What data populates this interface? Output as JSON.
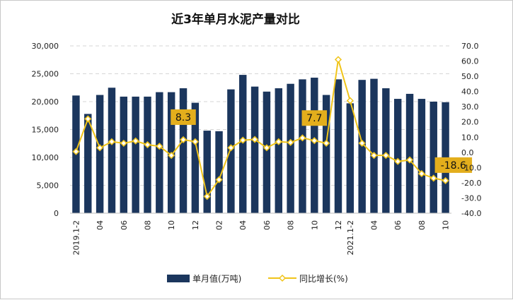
{
  "chart_data": {
    "type": "bar",
    "title": "近3年单月水泥产量对比",
    "colors": {
      "bar": "#1B365D",
      "line": "#F0C419",
      "marker_fill": "#ffffff",
      "callout_bg": "#E3AE1C",
      "grid": "#d6d6d6"
    },
    "y_left": {
      "range": [
        0,
        30000
      ],
      "ticks": [
        "0",
        "5,000",
        "10,000",
        "15,000",
        "20,000",
        "25,000",
        "30,000"
      ]
    },
    "y_right": {
      "range": [
        -40,
        70
      ],
      "ticks": [
        "-40.0",
        "-30.0",
        "-20.0",
        "-10.0",
        "0.0",
        "10.0",
        "20.0",
        "30.0",
        "40.0",
        "50.0",
        "60.0",
        "70.0"
      ]
    },
    "x_labels": [
      {
        "index": 0,
        "text": "2019.1-2"
      },
      {
        "index": 2,
        "text": "04"
      },
      {
        "index": 4,
        "text": "06"
      },
      {
        "index": 6,
        "text": "08"
      },
      {
        "index": 8,
        "text": "10"
      },
      {
        "index": 10,
        "text": "12"
      },
      {
        "index": 12,
        "text": "02"
      },
      {
        "index": 14,
        "text": "04"
      },
      {
        "index": 16,
        "text": "06"
      },
      {
        "index": 18,
        "text": "08"
      },
      {
        "index": 20,
        "text": "10"
      },
      {
        "index": 22,
        "text": "12"
      },
      {
        "index": 23,
        "text": "2021.1-2"
      },
      {
        "index": 25,
        "text": "04"
      },
      {
        "index": 27,
        "text": "06"
      },
      {
        "index": 29,
        "text": "08"
      },
      {
        "index": 31,
        "text": "10"
      }
    ],
    "series": [
      {
        "name": "单月值(万吨)",
        "type": "bar",
        "axis": "left",
        "values": [
          21100,
          17800,
          21200,
          22500,
          20900,
          20900,
          20900,
          21700,
          21700,
          22400,
          19800,
          14800,
          14700,
          22200,
          24800,
          22700,
          21800,
          22400,
          23200,
          24000,
          24300,
          21200,
          24000,
          19700,
          23900,
          24100,
          22400,
          20500,
          21400,
          20500,
          20000,
          19900
        ]
      },
      {
        "name": "同比增长(%)",
        "type": "line",
        "axis": "right",
        "values": [
          0.5,
          22,
          3,
          7,
          6,
          7.5,
          5,
          4,
          -2,
          8.3,
          7,
          -29,
          -18,
          3,
          8,
          8.5,
          3,
          7,
          6.5,
          9.5,
          7.7,
          6,
          61,
          34,
          6,
          -2,
          -2,
          -6,
          -5,
          -14,
          -17,
          -18.6
        ]
      }
    ],
    "callouts": [
      {
        "index": 9,
        "text": "8.3"
      },
      {
        "index": 20,
        "text": "7.7"
      },
      {
        "index": 31,
        "text": "-18.6"
      }
    ],
    "grid": true,
    "legend": "bottom"
  }
}
